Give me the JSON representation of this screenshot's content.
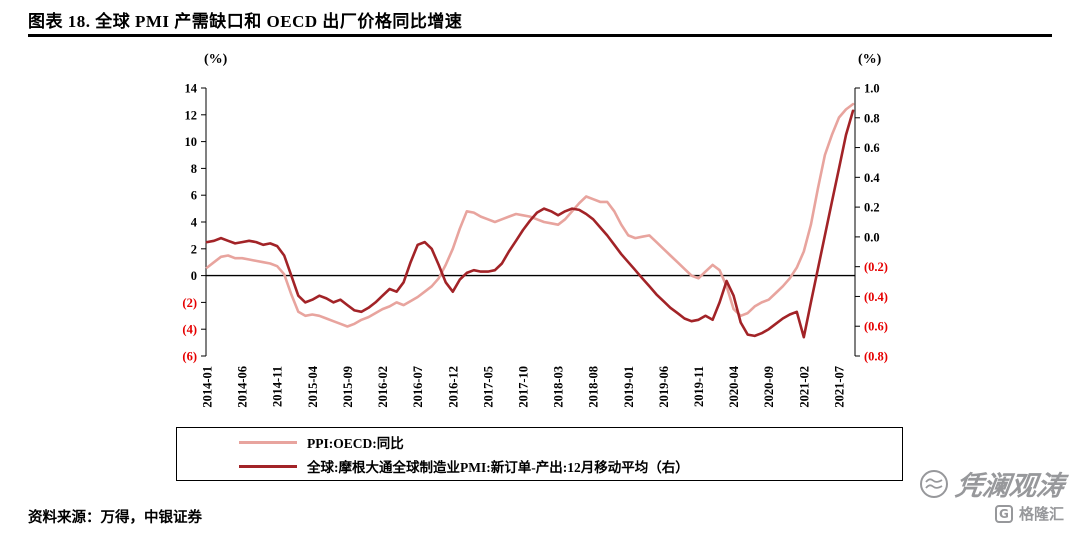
{
  "header": {
    "title": "图表 18. 全球 PMI 产需缺口和 OECD 出厂价格同比增速"
  },
  "chart_data": {
    "type": "line",
    "frequency": "monthly",
    "x_start": "2014-01",
    "x_end": "2021-09",
    "grid": false,
    "legend_position": "bottom",
    "axis_color": "#000000",
    "negative_tick_color": "#e60000",
    "x_tick_labels": [
      "2014-01",
      "2014-06",
      "2014-11",
      "2015-04",
      "2015-09",
      "2016-02",
      "2016-07",
      "2016-12",
      "2017-05",
      "2017-10",
      "2018-03",
      "2018-08",
      "2019-01",
      "2019-06",
      "2019-11",
      "2020-04",
      "2020-09",
      "2021-02",
      "2021-07"
    ],
    "x_tick_month_indices": [
      0,
      5,
      10,
      15,
      20,
      25,
      30,
      35,
      40,
      45,
      50,
      55,
      60,
      65,
      70,
      75,
      80,
      85,
      90
    ],
    "left_axis": {
      "unit": "(%)",
      "min": -6,
      "max": 14,
      "ticks": [
        14,
        12,
        10,
        8,
        6,
        4,
        2,
        0,
        -2,
        -4,
        -6
      ],
      "tick_labels": [
        "14",
        "12",
        "10",
        "8",
        "6",
        "4",
        "2",
        "0",
        "(2)",
        "(4)",
        "(6)"
      ]
    },
    "right_axis": {
      "unit": "(%)",
      "min": -0.8,
      "max": 1.0,
      "ticks": [
        1.0,
        0.8,
        0.6,
        0.4,
        0.2,
        0.0,
        -0.2,
        -0.4,
        -0.6,
        -0.8
      ],
      "tick_labels": [
        "1.0",
        "0.8",
        "0.6",
        "0.4",
        "0.2",
        "0.0",
        "(0.2)",
        "(0.4)",
        "(0.6)",
        "(0.8)"
      ]
    },
    "series": [
      {
        "name": "PPI:OECD:同比",
        "axis": "left",
        "color": "#e8a49e",
        "values": [
          0.6,
          1.0,
          1.4,
          1.5,
          1.3,
          1.3,
          1.2,
          1.1,
          1.0,
          0.9,
          0.7,
          0.1,
          -1.4,
          -2.7,
          -3.0,
          -2.9,
          -3.0,
          -3.2,
          -3.4,
          -3.6,
          -3.8,
          -3.6,
          -3.3,
          -3.1,
          -2.8,
          -2.5,
          -2.3,
          -2.0,
          -2.2,
          -1.9,
          -1.6,
          -1.2,
          -0.8,
          -0.2,
          0.8,
          2.0,
          3.5,
          4.8,
          4.7,
          4.4,
          4.2,
          4.0,
          4.2,
          4.4,
          4.6,
          4.5,
          4.4,
          4.2,
          4.0,
          3.9,
          3.8,
          4.2,
          4.8,
          5.4,
          5.9,
          5.7,
          5.5,
          5.5,
          4.8,
          3.8,
          3.0,
          2.8,
          2.9,
          3.0,
          2.5,
          2.0,
          1.5,
          1.0,
          0.5,
          0.0,
          -0.2,
          0.3,
          0.8,
          0.4,
          -0.8,
          -2.5,
          -3.0,
          -2.8,
          -2.3,
          -2.0,
          -1.8,
          -1.3,
          -0.8,
          -0.2,
          0.6,
          1.8,
          3.8,
          6.5,
          9.0,
          10.5,
          11.8,
          12.4,
          12.8
        ]
      },
      {
        "name": "全球:摩根大通全球制造业PMI:新订单-产出:12月移动平均（右）",
        "axis": "right",
        "color": "#a22327",
        "values": [
          -0.035,
          -0.026,
          -0.008,
          -0.026,
          -0.044,
          -0.035,
          -0.026,
          -0.035,
          -0.053,
          -0.044,
          -0.062,
          -0.125,
          -0.26,
          -0.395,
          -0.44,
          -0.422,
          -0.395,
          -0.413,
          -0.44,
          -0.422,
          -0.458,
          -0.494,
          -0.503,
          -0.476,
          -0.44,
          -0.395,
          -0.35,
          -0.368,
          -0.305,
          -0.17,
          -0.053,
          -0.035,
          -0.08,
          -0.188,
          -0.305,
          -0.368,
          -0.287,
          -0.242,
          -0.224,
          -0.233,
          -0.233,
          -0.224,
          -0.179,
          -0.098,
          -0.026,
          0.046,
          0.109,
          0.163,
          0.19,
          0.172,
          0.145,
          0.172,
          0.19,
          0.181,
          0.154,
          0.118,
          0.064,
          0.01,
          -0.053,
          -0.116,
          -0.17,
          -0.224,
          -0.278,
          -0.332,
          -0.386,
          -0.431,
          -0.476,
          -0.512,
          -0.548,
          -0.566,
          -0.557,
          -0.53,
          -0.557,
          -0.44,
          -0.296,
          -0.395,
          -0.575,
          -0.656,
          -0.665,
          -0.647,
          -0.62,
          -0.584,
          -0.548,
          -0.521,
          -0.503,
          -0.674,
          -0.44,
          -0.215,
          0.01,
          0.235,
          0.46,
          0.685,
          0.847
        ]
      }
    ]
  },
  "footer": {
    "source": "资料来源：万得，中银证券"
  },
  "watermarks": {
    "primary": "凭澜观涛",
    "secondary": "格隆汇",
    "secondary_icon_letter": "G",
    "color": "#97989b"
  }
}
